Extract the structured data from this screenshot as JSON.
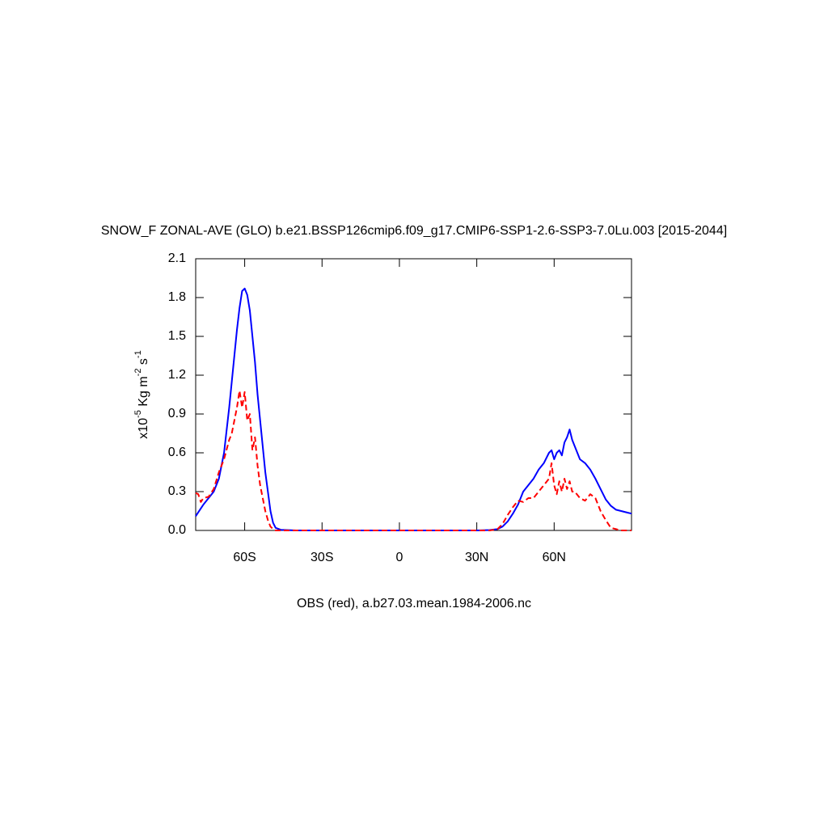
{
  "chart_data": {
    "type": "line",
    "title": "SNOW_F ZONAL-AVE (GLO) b.e21.BSSP126cmip6.f09_g17.CMIP6-SSP1-2.6-SSP3-7.0Lu.003 [2015-2044]",
    "subtitle": "OBS (red), a.b27.03.mean.1984-2006.nc",
    "ylabel_parts": [
      "x10",
      "-5",
      " Kg m",
      "-2",
      " s",
      "-1"
    ],
    "xlim": [
      -79,
      90
    ],
    "xticks": [
      {
        "value": -60,
        "label": "60S"
      },
      {
        "value": -30,
        "label": "30S"
      },
      0,
      {
        "value": 30,
        "label": "30N"
      },
      {
        "value": 60,
        "label": "60N"
      }
    ],
    "ylim": [
      0,
      2.1
    ],
    "yticks": [
      {
        "value": 0,
        "label": "0.0"
      },
      0.3,
      0.6,
      0.9,
      1.2,
      1.5,
      1.8,
      2.1
    ],
    "x": [
      -79,
      -78,
      -77,
      -76,
      -74,
      -72,
      -70,
      -68,
      -66,
      -65,
      -64,
      -63,
      -62,
      -61,
      -60,
      -59,
      -58,
      -57,
      -56,
      -55,
      -54,
      -53,
      -52,
      -51,
      -50,
      -49,
      -48,
      -46,
      -40,
      -30,
      -20,
      -10,
      0,
      10,
      20,
      30,
      35,
      38,
      40,
      42,
      44,
      46,
      48,
      50,
      52,
      54,
      56,
      58,
      59,
      60,
      61,
      62,
      63,
      64,
      65,
      66,
      67,
      68,
      70,
      72,
      74,
      76,
      78,
      80,
      82,
      84,
      86,
      88,
      90
    ],
    "series": [
      {
        "color": "#0000ff",
        "dash": false,
        "values": [
          0.11,
          0.14,
          0.17,
          0.2,
          0.25,
          0.3,
          0.4,
          0.6,
          0.95,
          1.15,
          1.35,
          1.55,
          1.72,
          1.85,
          1.87,
          1.82,
          1.7,
          1.5,
          1.3,
          1.05,
          0.85,
          0.65,
          0.45,
          0.3,
          0.15,
          0.06,
          0.02,
          0.005,
          0,
          0,
          0,
          0,
          0,
          0,
          0,
          0,
          0.003,
          0.01,
          0.03,
          0.07,
          0.13,
          0.2,
          0.3,
          0.35,
          0.4,
          0.47,
          0.52,
          0.6,
          0.62,
          0.55,
          0.6,
          0.62,
          0.58,
          0.68,
          0.72,
          0.78,
          0.7,
          0.65,
          0.55,
          0.52,
          0.47,
          0.4,
          0.32,
          0.24,
          0.19,
          0.16,
          0.15,
          0.14,
          0.13
        ]
      },
      {
        "color": "#ff0000",
        "dash": true,
        "values": [
          0.29,
          0.28,
          0.22,
          0.25,
          0.26,
          0.32,
          0.45,
          0.55,
          0.7,
          0.75,
          0.85,
          0.95,
          1.08,
          0.95,
          1.07,
          0.85,
          0.9,
          0.62,
          0.72,
          0.5,
          0.35,
          0.25,
          0.15,
          0.08,
          0.03,
          0.01,
          0,
          0,
          0,
          0,
          0,
          0,
          0,
          0,
          0,
          0,
          0,
          0.01,
          0.05,
          0.12,
          0.18,
          0.23,
          0.22,
          0.25,
          0.25,
          0.3,
          0.35,
          0.4,
          0.52,
          0.35,
          0.28,
          0.38,
          0.3,
          0.4,
          0.32,
          0.38,
          0.3,
          0.3,
          0.25,
          0.23,
          0.28,
          0.25,
          0.15,
          0.08,
          0.02,
          0.01,
          0,
          0,
          0
        ]
      }
    ]
  }
}
